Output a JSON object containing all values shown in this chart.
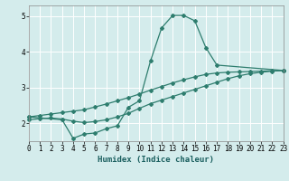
{
  "xlabel": "Humidex (Indice chaleur)",
  "bg_color": "#d4ecec",
  "grid_color": "#b8d8d8",
  "line_color": "#2e7d6e",
  "xlim": [
    0,
    23
  ],
  "ylim": [
    1.5,
    5.3
  ],
  "line1_x": [
    0,
    1,
    2,
    3,
    4,
    5,
    6,
    7,
    8,
    9,
    10,
    11,
    12,
    13,
    14,
    15,
    16,
    17,
    18,
    19,
    20,
    21,
    22,
    23
  ],
  "line1_y": [
    2.18,
    2.22,
    2.26,
    2.3,
    2.34,
    2.38,
    2.46,
    2.54,
    2.63,
    2.72,
    2.82,
    2.93,
    3.03,
    3.13,
    3.22,
    3.3,
    3.37,
    3.41,
    3.43,
    3.44,
    3.45,
    3.46,
    3.47,
    3.48
  ],
  "line2_x": [
    0,
    1,
    2,
    3,
    4,
    5,
    6,
    7,
    8,
    9,
    10,
    11,
    12,
    13,
    14,
    15,
    16,
    17,
    18,
    19,
    20,
    21,
    22,
    23
  ],
  "line2_y": [
    2.1,
    2.13,
    2.15,
    2.12,
    2.06,
    2.02,
    2.05,
    2.1,
    2.18,
    2.28,
    2.42,
    2.55,
    2.65,
    2.75,
    2.85,
    2.95,
    3.05,
    3.15,
    3.25,
    3.33,
    3.39,
    3.43,
    3.46,
    3.48
  ],
  "line3_x": [
    0,
    3,
    4,
    5,
    6,
    7,
    8,
    9,
    10,
    11,
    12,
    13,
    14,
    15,
    16,
    17,
    23
  ],
  "line3_y": [
    2.18,
    2.1,
    1.58,
    1.7,
    1.73,
    1.85,
    1.93,
    2.45,
    2.63,
    3.75,
    4.67,
    5.02,
    5.02,
    4.87,
    4.12,
    3.63,
    3.48
  ],
  "yticks": [
    2,
    3,
    4,
    5
  ],
  "tick_fontsize": 5.5,
  "label_fontsize": 6.5
}
